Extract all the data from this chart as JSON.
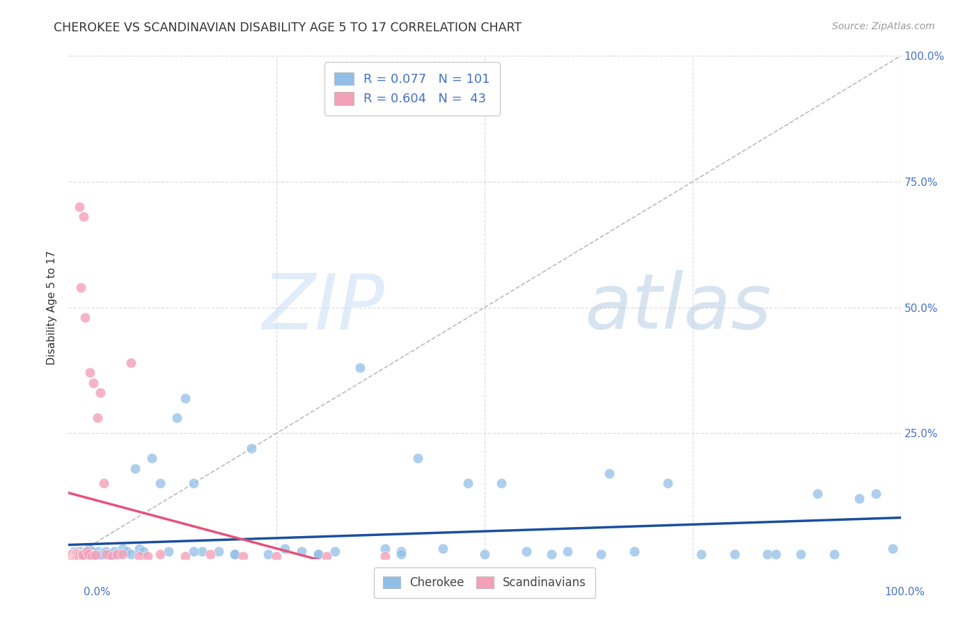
{
  "title": "CHEROKEE VS SCANDINAVIAN DISABILITY AGE 5 TO 17 CORRELATION CHART",
  "source": "Source: ZipAtlas.com",
  "ylabel": "Disability Age 5 to 17",
  "cherokee_color": "#92BFE8",
  "scandinavian_color": "#F4A0B8",
  "cherokee_line_color": "#1A4FA0",
  "scandinavian_line_color": "#E8507A",
  "diagonal_color": "#BBBBBB",
  "background_color": "#FFFFFF",
  "grid_color": "#DDDDDD",
  "title_color": "#333333",
  "axis_label_color": "#4472C4",
  "legend_R_color": "#4472C4",
  "ylim": [
    0,
    1.0
  ],
  "xlim": [
    0,
    1.0
  ],
  "cherokee_x": [
    0.002,
    0.003,
    0.004,
    0.005,
    0.005,
    0.006,
    0.006,
    0.007,
    0.007,
    0.008,
    0.008,
    0.009,
    0.009,
    0.01,
    0.01,
    0.011,
    0.011,
    0.012,
    0.012,
    0.013,
    0.013,
    0.014,
    0.015,
    0.015,
    0.016,
    0.016,
    0.017,
    0.018,
    0.019,
    0.02,
    0.021,
    0.022,
    0.023,
    0.024,
    0.025,
    0.026,
    0.027,
    0.028,
    0.029,
    0.03,
    0.032,
    0.034,
    0.036,
    0.038,
    0.04,
    0.042,
    0.045,
    0.048,
    0.05,
    0.055,
    0.06,
    0.065,
    0.07,
    0.075,
    0.08,
    0.085,
    0.09,
    0.1,
    0.11,
    0.12,
    0.13,
    0.14,
    0.15,
    0.16,
    0.18,
    0.2,
    0.22,
    0.24,
    0.26,
    0.28,
    0.3,
    0.32,
    0.35,
    0.38,
    0.4,
    0.42,
    0.45,
    0.48,
    0.5,
    0.52,
    0.55,
    0.58,
    0.6,
    0.64,
    0.68,
    0.72,
    0.76,
    0.8,
    0.84,
    0.88,
    0.9,
    0.92,
    0.95,
    0.97,
    0.99,
    0.15,
    0.2,
    0.3,
    0.4,
    0.65,
    0.85
  ],
  "cherokee_y": [
    0.005,
    0.008,
    0.01,
    0.005,
    0.012,
    0.007,
    0.01,
    0.005,
    0.015,
    0.008,
    0.01,
    0.005,
    0.012,
    0.01,
    0.005,
    0.008,
    0.015,
    0.005,
    0.01,
    0.008,
    0.012,
    0.015,
    0.005,
    0.01,
    0.008,
    0.005,
    0.01,
    0.008,
    0.005,
    0.01,
    0.015,
    0.008,
    0.01,
    0.005,
    0.02,
    0.008,
    0.01,
    0.015,
    0.008,
    0.005,
    0.01,
    0.008,
    0.015,
    0.01,
    0.008,
    0.01,
    0.015,
    0.01,
    0.008,
    0.015,
    0.01,
    0.02,
    0.015,
    0.01,
    0.18,
    0.02,
    0.015,
    0.2,
    0.15,
    0.015,
    0.28,
    0.32,
    0.15,
    0.015,
    0.015,
    0.01,
    0.22,
    0.01,
    0.02,
    0.015,
    0.01,
    0.015,
    0.38,
    0.02,
    0.015,
    0.2,
    0.02,
    0.15,
    0.01,
    0.15,
    0.015,
    0.01,
    0.015,
    0.01,
    0.015,
    0.15,
    0.01,
    0.01,
    0.01,
    0.01,
    0.13,
    0.01,
    0.12,
    0.13,
    0.02,
    0.015,
    0.01,
    0.01,
    0.01,
    0.17,
    0.01
  ],
  "scandinavian_x": [
    0.002,
    0.003,
    0.004,
    0.005,
    0.005,
    0.006,
    0.007,
    0.008,
    0.009,
    0.01,
    0.01,
    0.011,
    0.012,
    0.013,
    0.014,
    0.015,
    0.016,
    0.017,
    0.018,
    0.02,
    0.022,
    0.024,
    0.026,
    0.028,
    0.03,
    0.032,
    0.035,
    0.038,
    0.042,
    0.046,
    0.052,
    0.058,
    0.065,
    0.075,
    0.085,
    0.095,
    0.11,
    0.14,
    0.17,
    0.21,
    0.25,
    0.31,
    0.38
  ],
  "scandinavian_y": [
    0.005,
    0.01,
    0.005,
    0.008,
    0.01,
    0.005,
    0.008,
    0.01,
    0.005,
    0.008,
    0.012,
    0.01,
    0.005,
    0.7,
    0.01,
    0.54,
    0.01,
    0.008,
    0.68,
    0.48,
    0.015,
    0.01,
    0.37,
    0.005,
    0.35,
    0.008,
    0.28,
    0.33,
    0.15,
    0.01,
    0.005,
    0.01,
    0.01,
    0.39,
    0.005,
    0.005,
    0.01,
    0.005,
    0.01,
    0.005,
    0.005,
    0.005,
    0.005
  ],
  "cherokee_R": 0.077,
  "cherokee_N": 101,
  "scandinavian_R": 0.604,
  "scandinavian_N": 43
}
